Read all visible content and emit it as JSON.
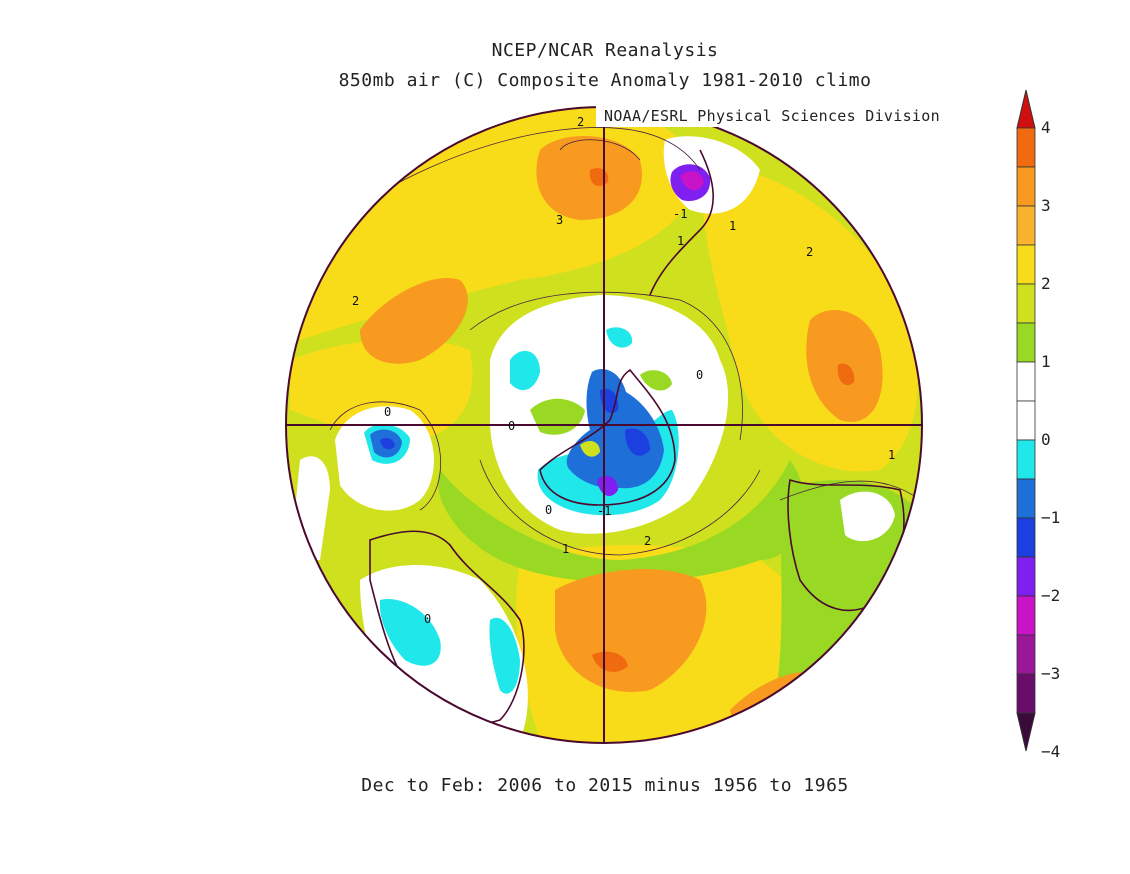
{
  "title_line1": "NCEP/NCAR Reanalysis",
  "title_line2": "850mb air (C) Composite Anomaly 1981-2010 climo",
  "credit": "NOAA/ESRL Physical Sciences Division",
  "footer": "Dec to Feb: 2006 to 2015 minus 1956 to 1965",
  "projection": "south polar stereographic",
  "contour_labels": [
    "2",
    "3",
    "2",
    "2",
    "-1",
    "1",
    "1",
    "0",
    "0",
    "0",
    "-1",
    "0",
    "1",
    "2",
    "1",
    "0"
  ],
  "colorbar": {
    "tick_labels": [
      "4",
      "3",
      "2",
      "1",
      "0",
      "-1",
      "-2",
      "-3",
      "-4"
    ],
    "colors": [
      "#d01010",
      "#f06a10",
      "#f79a1f",
      "#f9b32f",
      "#f8dc1a",
      "#cfe01e",
      "#9ad923",
      "#ffffff",
      "#ffffff",
      "#20e8ea",
      "#1f6fd8",
      "#1c3fe0",
      "#7f1ff0",
      "#c813c8",
      "#9a179a",
      "#6a0c6a",
      "#3a0a3a"
    ]
  },
  "chart_data": {
    "type": "heatmap",
    "title": "NCEP/NCAR Reanalysis",
    "subtitle": "850mb air (C) Composite Anomaly 1981-2010 climo",
    "variable": "850mb air temperature anomaly",
    "units": "C",
    "period": "Dec to Feb: 2006 to 2015 minus 1956 to 1965",
    "value_range": [
      -4,
      4
    ],
    "levels": [
      -4,
      -3.5,
      -3,
      -2.5,
      -2,
      -1.5,
      -1,
      -0.5,
      0,
      0.5,
      1,
      1.5,
      2,
      2.5,
      3,
      3.5,
      4
    ]
  }
}
